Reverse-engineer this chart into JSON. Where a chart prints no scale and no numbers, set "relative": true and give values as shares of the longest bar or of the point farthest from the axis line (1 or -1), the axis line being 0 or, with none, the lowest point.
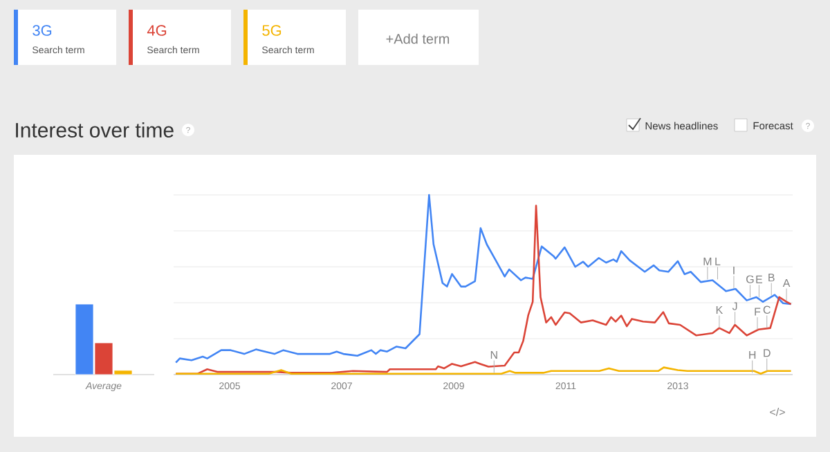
{
  "chart_data": [
    {
      "type": "bar",
      "relative": true,
      "categories": [
        "Average"
      ],
      "series": [
        {
          "color": "#4285f4",
          "values": [
            1
          ]
        },
        {
          "color": "#db4437",
          "values": [
            0.45
          ]
        },
        {
          "color": "#f4b400",
          "values": [
            0.06
          ]
        }
      ]
    },
    {
      "type": "line",
      "title": "Interest over time",
      "relative": true,
      "legend": "top left",
      "grid": "y",
      "tick_labels": "x",
      "marker": "none",
      "line_style": "solid",
      "xlim": [
        2004.0,
        2015.05
      ],
      "xticks": [
        2005,
        2007,
        2009,
        2011,
        2013
      ],
      "series": [
        {
          "name": "3G",
          "color": "#4285f4",
          "x": [
            2004.04,
            2004.11,
            2004.32,
            2004.52,
            2004.6,
            2004.85,
            2005.02,
            2005.26,
            2005.47,
            2005.8,
            2005.96,
            2006.21,
            2006.79,
            2006.91,
            2007.03,
            2007.28,
            2007.53,
            2007.61,
            2007.69,
            2007.81,
            2007.98,
            2008.14,
            2008.39,
            2008.56,
            2008.64,
            2008.8,
            2008.88,
            2008.97,
            2009.13,
            2009.21,
            2009.38,
            2009.48,
            2009.59,
            2009.75,
            2009.91,
            2009.99,
            2010.2,
            2010.28,
            2010.41,
            2010.57,
            2010.78,
            2010.82,
            2010.98,
            2011.17,
            2011.31,
            2011.4,
            2011.59,
            2011.72,
            2011.85,
            2011.91,
            2011.99,
            2012.14,
            2012.41,
            2012.57,
            2012.67,
            2012.83,
            2013.0,
            2013.12,
            2013.23,
            2013.41,
            2013.62,
            2013.86,
            2014.03,
            2014.23,
            2014.4,
            2014.52,
            2014.73,
            2014.88,
            2015.02
          ],
          "values": [
            0.067,
            0.09,
            0.08,
            0.1,
            0.09,
            0.136,
            0.136,
            0.115,
            0.14,
            0.115,
            0.136,
            0.115,
            0.115,
            0.128,
            0.115,
            0.105,
            0.136,
            0.115,
            0.136,
            0.128,
            0.156,
            0.146,
            0.225,
            1.0,
            0.725,
            0.51,
            0.49,
            0.56,
            0.49,
            0.49,
            0.52,
            0.815,
            0.725,
            0.636,
            0.546,
            0.585,
            0.525,
            0.54,
            0.533,
            0.713,
            0.66,
            0.645,
            0.708,
            0.6,
            0.628,
            0.6,
            0.649,
            0.623,
            0.641,
            0.628,
            0.687,
            0.636,
            0.572,
            0.608,
            0.58,
            0.572,
            0.631,
            0.559,
            0.572,
            0.515,
            0.525,
            0.464,
            0.477,
            0.413,
            0.431,
            0.405,
            0.444,
            0.397,
            0.392
          ]
        },
        {
          "name": "4G",
          "color": "#db4437",
          "x": [
            2004.04,
            2004.43,
            2004.6,
            2004.78,
            2005.84,
            2006.09,
            2006.83,
            2007.2,
            2007.81,
            2007.86,
            2008.68,
            2008.72,
            2008.83,
            2008.97,
            2009.13,
            2009.38,
            2009.47,
            2009.62,
            2009.91,
            2010.08,
            2010.16,
            2010.24,
            2010.33,
            2010.41,
            2010.47,
            2010.55,
            2010.65,
            2010.74,
            2010.82,
            2010.98,
            2011.07,
            2011.27,
            2011.48,
            2011.72,
            2011.81,
            2011.89,
            2011.99,
            2012.09,
            2012.18,
            2012.38,
            2012.59,
            2012.74,
            2012.84,
            2013.04,
            2013.33,
            2013.62,
            2013.74,
            2013.92,
            2014.02,
            2014.23,
            2014.44,
            2014.65,
            2014.81,
            2014.94,
            2015.02
          ],
          "values": [
            0.005,
            0.005,
            0.03,
            0.015,
            0.015,
            0.01,
            0.01,
            0.02,
            0.015,
            0.03,
            0.03,
            0.046,
            0.035,
            0.06,
            0.046,
            0.07,
            0.06,
            0.044,
            0.05,
            0.123,
            0.123,
            0.187,
            0.33,
            0.405,
            0.94,
            0.431,
            0.29,
            0.32,
            0.277,
            0.346,
            0.341,
            0.29,
            0.302,
            0.277,
            0.32,
            0.295,
            0.328,
            0.269,
            0.31,
            0.295,
            0.29,
            0.348,
            0.285,
            0.277,
            0.218,
            0.231,
            0.259,
            0.231,
            0.277,
            0.218,
            0.251,
            0.259,
            0.431,
            0.405,
            0.392
          ]
        },
        {
          "name": "5G",
          "color": "#f4b400",
          "x": [
            2004.04,
            2005.7,
            2005.92,
            2006.1,
            2009.85,
            2010.0,
            2010.1,
            2010.6,
            2010.74,
            2011.6,
            2011.77,
            2011.95,
            2012.65,
            2012.75,
            2013.0,
            2013.17,
            2014.36,
            2014.48,
            2014.6,
            2015.02
          ],
          "values": [
            0.005,
            0.005,
            0.025,
            0.005,
            0.005,
            0.02,
            0.01,
            0.01,
            0.02,
            0.02,
            0.035,
            0.02,
            0.02,
            0.04,
            0.025,
            0.02,
            0.02,
            0.005,
            0.02,
            0.02
          ]
        }
      ],
      "annotations": [
        "Search term",
        "Search term",
        "Search term",
        "+Add term",
        "News headlines",
        "Forecast",
        "?",
        "?",
        "</>",
        {
          "text": "M",
          "x": 2013.53,
          "y": 0.53
        },
        {
          "text": "L",
          "x": 2013.71,
          "y": 0.53
        },
        {
          "text": "I",
          "x": 2014.0,
          "y": 0.48
        },
        {
          "text": "G",
          "x": 2014.29,
          "y": 0.43
        },
        {
          "text": "E",
          "x": 2014.45,
          "y": 0.43
        },
        {
          "text": "B",
          "x": 2014.67,
          "y": 0.44
        },
        {
          "text": "A",
          "x": 2014.94,
          "y": 0.41
        },
        {
          "text": "K",
          "x": 2013.74,
          "y": 0.26
        },
        {
          "text": "J",
          "x": 2014.02,
          "y": 0.28
        },
        {
          "text": "F",
          "x": 2014.42,
          "y": 0.25
        },
        {
          "text": "C",
          "x": 2014.59,
          "y": 0.26
        },
        {
          "text": "N",
          "x": 2009.72,
          "y": 0.01
        },
        {
          "text": "H",
          "x": 2014.33,
          "y": 0.01
        },
        {
          "text": "D",
          "x": 2014.59,
          "y": 0.02
        }
      ]
    }
  ]
}
